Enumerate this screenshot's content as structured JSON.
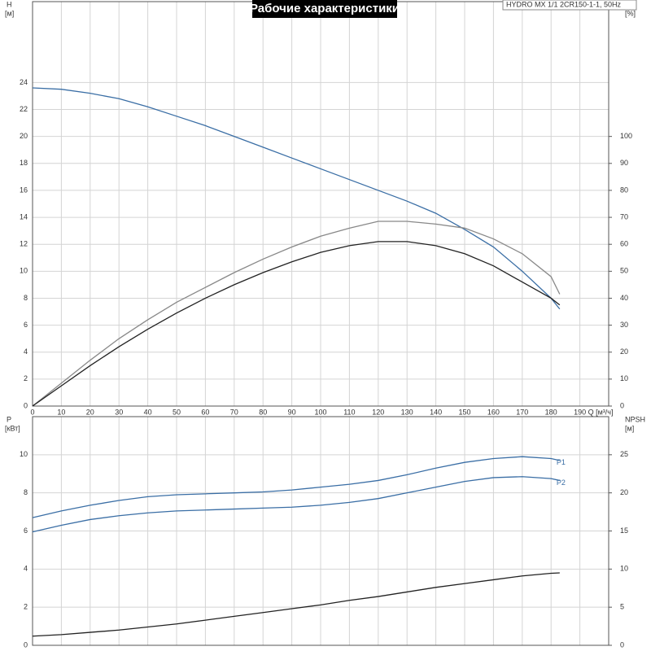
{
  "chart_data": [
    {
      "type": "line",
      "title": "Рабочие характеристики",
      "model_label": "HYDRO MX 1/1 2CR150-1-1, 50Hz",
      "ylabel": "H",
      "yunit": "[м]",
      "y2label": "eta",
      "y2unit": "[%]",
      "xlabel": "Q [м³/ч]",
      "x": [
        0,
        10,
        20,
        30,
        40,
        50,
        60,
        70,
        80,
        90,
        100,
        110,
        120,
        130,
        140,
        150,
        160,
        170,
        180,
        183
      ],
      "xlim": [
        0,
        200
      ],
      "xticks": [
        0,
        10,
        20,
        30,
        40,
        50,
        60,
        70,
        80,
        90,
        100,
        110,
        120,
        130,
        140,
        150,
        160,
        170,
        180,
        190
      ],
      "ylim": [
        0,
        30
      ],
      "yticks": [
        0,
        2,
        4,
        6,
        8,
        10,
        12,
        14,
        16,
        18,
        20,
        22,
        24
      ],
      "y2lim": [
        0,
        150
      ],
      "y2ticks": [
        0,
        10,
        20,
        30,
        40,
        50,
        60,
        70,
        80,
        90,
        100
      ],
      "grid": true,
      "series": [
        {
          "color": "#3a6ea5",
          "values": [
            23.6,
            23.5,
            23.2,
            22.8,
            22.2,
            21.5,
            20.8,
            20.0,
            19.2,
            18.4,
            17.6,
            16.8,
            16.0,
            15.2,
            14.3,
            13.1,
            11.8,
            10.0,
            8.0,
            7.2
          ]
        },
        {
          "color": "#888888",
          "axis": "y2",
          "values": [
            0,
            8.5,
            17,
            25,
            32,
            38.5,
            44,
            49.5,
            54.5,
            59,
            63,
            66,
            68.5,
            68.5,
            67.5,
            66,
            62,
            56.5,
            48,
            41.5
          ]
        },
        {
          "color": "#222222",
          "axis": "y2",
          "values": [
            0,
            7.5,
            15,
            22,
            28.5,
            34.5,
            40,
            45,
            49.5,
            53.5,
            57,
            59.5,
            61,
            61,
            59.5,
            56.5,
            52,
            46,
            40,
            37.5
          ]
        }
      ]
    },
    {
      "type": "line",
      "ylabel": "P",
      "yunit": "[кВт]",
      "y2label": "NPSH",
      "y2unit": "[м]",
      "x": [
        0,
        10,
        20,
        30,
        40,
        50,
        60,
        70,
        80,
        90,
        100,
        110,
        120,
        130,
        140,
        150,
        160,
        170,
        180,
        183
      ],
      "xlim": [
        0,
        200
      ],
      "xticks": [
        0,
        10,
        20,
        30,
        40,
        50,
        60,
        70,
        80,
        90,
        100,
        110,
        120,
        130,
        140,
        150,
        160,
        170,
        180,
        190
      ],
      "ylim": [
        0,
        12
      ],
      "yticks": [
        0,
        2,
        4,
        6,
        8,
        10
      ],
      "y2lim": [
        0,
        30
      ],
      "y2ticks": [
        0,
        5,
        10,
        15,
        20,
        25
      ],
      "grid": true,
      "series": [
        {
          "name": "P1",
          "color": "#3a6ea5",
          "values": [
            6.7,
            7.05,
            7.35,
            7.6,
            7.8,
            7.9,
            7.95,
            8.0,
            8.05,
            8.15,
            8.3,
            8.45,
            8.65,
            8.95,
            9.3,
            9.6,
            9.8,
            9.9,
            9.8,
            9.7
          ]
        },
        {
          "name": "P2",
          "color": "#3a6ea5",
          "values": [
            5.95,
            6.3,
            6.6,
            6.8,
            6.95,
            7.05,
            7.1,
            7.15,
            7.2,
            7.25,
            7.35,
            7.5,
            7.7,
            8.0,
            8.3,
            8.6,
            8.8,
            8.85,
            8.75,
            8.65
          ]
        },
        {
          "color": "#222222",
          "axis": "y2",
          "values": [
            1.2,
            1.4,
            1.7,
            2.0,
            2.4,
            2.8,
            3.3,
            3.8,
            4.3,
            4.8,
            5.3,
            5.9,
            6.4,
            7.0,
            7.6,
            8.1,
            8.6,
            9.1,
            9.45,
            9.5
          ]
        }
      ]
    }
  ]
}
